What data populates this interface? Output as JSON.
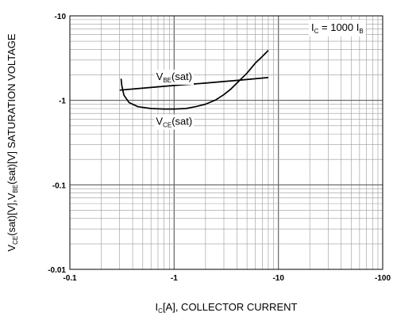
{
  "chart_data": {
    "type": "line",
    "log_x": true,
    "log_y": true,
    "x_is_negative": true,
    "y_is_negative": true,
    "xlim": [
      -0.1,
      -100
    ],
    "ylim": [
      -0.01,
      -10
    ],
    "grid": true,
    "x_ticks": [
      "-0.1",
      "-1",
      "-10",
      "-100"
    ],
    "y_ticks": [
      "-10",
      "-1",
      "-0.1",
      "-0.01"
    ],
    "xlabel": {
      "main": "I",
      "sub": "C",
      "rest": "[A], COLLECTOR CURRENT"
    },
    "ylabel": {
      "p1": "V",
      "s1": "CE",
      "p2": "(sat)[V],V",
      "s2": "BE",
      "p3": "(sat)[V] SATURATION VOLTAGE"
    },
    "condition": {
      "p1": "I",
      "s1": "C",
      "p2": " = 1000 I",
      "s2": "B"
    },
    "series": [
      {
        "name": {
          "p1": "V",
          "s1": "BE",
          "p2": "(sat)"
        },
        "label_at": {
          "x": -1.0,
          "y": -1.9
        },
        "x": [
          -0.3,
          -0.4,
          -0.6,
          -1.0,
          -1.5,
          -2.0,
          -3.0,
          -4.0,
          -6.0,
          -8.0
        ],
        "y": [
          -1.32,
          -1.36,
          -1.42,
          -1.5,
          -1.56,
          -1.6,
          -1.67,
          -1.72,
          -1.8,
          -1.86
        ]
      },
      {
        "name": {
          "p1": "V",
          "s1": "CE",
          "p2": "(sat)"
        },
        "label_at": {
          "x": -1.0,
          "y": -0.56
        },
        "x": [
          -0.31,
          -0.315,
          -0.33,
          -0.37,
          -0.45,
          -0.6,
          -0.8,
          -1.0,
          -1.3,
          -1.6,
          -2.0,
          -2.5,
          -3.0,
          -3.5,
          -4.0,
          -5.0,
          -6.0,
          -7.0,
          -8.0
        ],
        "y": [
          -1.8,
          -1.5,
          -1.15,
          -0.94,
          -0.84,
          -0.8,
          -0.79,
          -0.79,
          -0.8,
          -0.84,
          -0.9,
          -1.01,
          -1.17,
          -1.36,
          -1.6,
          -2.1,
          -2.75,
          -3.3,
          -3.9
        ]
      }
    ]
  }
}
